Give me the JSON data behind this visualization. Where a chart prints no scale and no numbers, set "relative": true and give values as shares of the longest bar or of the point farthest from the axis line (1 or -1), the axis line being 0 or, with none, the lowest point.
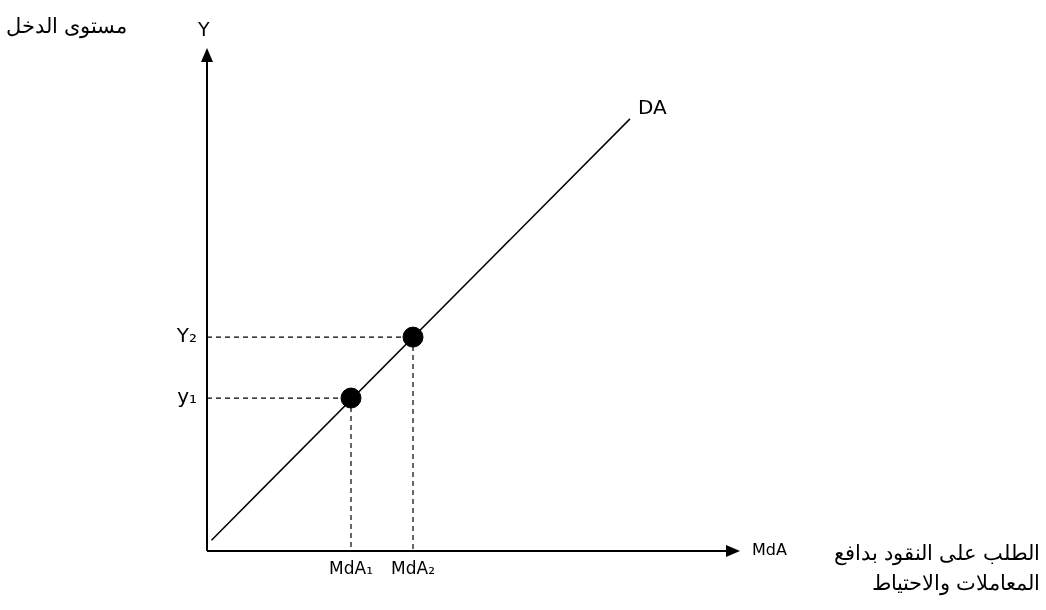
{
  "chart_data": {
    "type": "line",
    "relative": true,
    "ylabel": "Y",
    "annotations": [
      "مستوى الدخل",
      "الطلب على النقود بدافع المعاملات والاحتياط",
      "MdA",
      "y₁",
      "Y₂"
    ],
    "categories": [
      null,
      null,
      null,
      null,
      null,
      null,
      null,
      null,
      null,
      "MdA₁",
      null,
      null,
      null,
      "MdA₂",
      null,
      null,
      null,
      null,
      null,
      null,
      null,
      null,
      null,
      null,
      null,
      null,
      null,
      null
    ],
    "series": [
      {
        "name": "DA",
        "type": "line",
        "color": "#000000",
        "marker": "none",
        "values": [
          0.025,
          null,
          null,
          null,
          null,
          null,
          null,
          null,
          null,
          null,
          null,
          null,
          null,
          null,
          null,
          null,
          null,
          null,
          null,
          null,
          null,
          null,
          null,
          null,
          null,
          null,
          null,
          1
        ]
      },
      {
        "type": "scatter",
        "color": "#000000",
        "marker": "circle",
        "values": [
          null,
          null,
          null,
          null,
          null,
          null,
          null,
          null,
          null,
          0.354,
          null,
          null,
          null,
          0.495,
          null,
          null,
          null,
          null,
          null,
          null,
          null,
          null,
          null,
          null,
          null,
          null,
          null,
          null
        ]
      }
    ]
  }
}
